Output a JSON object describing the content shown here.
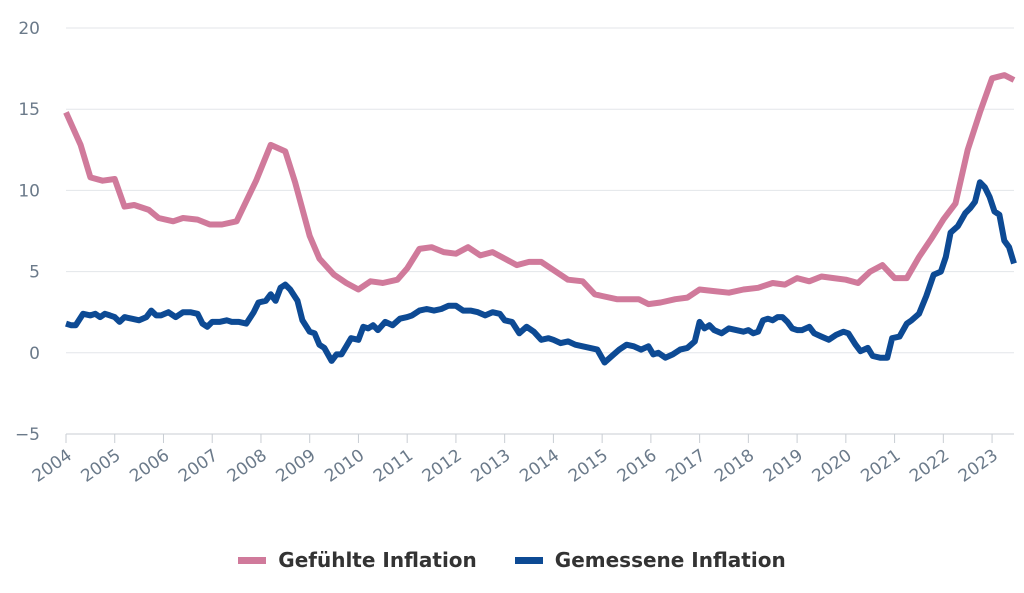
{
  "chart_data": {
    "type": "line",
    "ylim": [
      -5,
      20
    ],
    "xlim": [
      2004.0,
      2023.45
    ],
    "y_ticks": [
      -5,
      0,
      5,
      10,
      15,
      20
    ],
    "y_tick_labels": [
      "−5",
      "0",
      "5",
      "10",
      "15",
      "20"
    ],
    "x_ticks": [
      2004,
      2005,
      2006,
      2007,
      2008,
      2009,
      2010,
      2011,
      2012,
      2013,
      2014,
      2015,
      2016,
      2017,
      2018,
      2019,
      2020,
      2021,
      2022,
      2023
    ],
    "x_tick_labels": [
      "2004",
      "2005",
      "2006",
      "2007",
      "2008",
      "2009",
      "2010",
      "2011",
      "2012",
      "2013",
      "2014",
      "2015",
      "2016",
      "2017",
      "2018",
      "2019",
      "2020",
      "2021",
      "2022",
      "2023"
    ],
    "grid": "horizontal",
    "legend_position": "bottom-center",
    "series": [
      {
        "name": "Gefühlte Inflation",
        "color": "#d07a9b",
        "points": [
          [
            2004.0,
            14.8
          ],
          [
            2004.3,
            12.8
          ],
          [
            2004.5,
            10.8
          ],
          [
            2004.75,
            10.6
          ],
          [
            2005.0,
            10.7
          ],
          [
            2005.2,
            9.0
          ],
          [
            2005.4,
            9.1
          ],
          [
            2005.7,
            8.8
          ],
          [
            2005.9,
            8.3
          ],
          [
            2006.2,
            8.1
          ],
          [
            2006.4,
            8.3
          ],
          [
            2006.7,
            8.2
          ],
          [
            2006.95,
            7.9
          ],
          [
            2007.2,
            7.9
          ],
          [
            2007.5,
            8.1
          ],
          [
            2007.9,
            10.6
          ],
          [
            2008.2,
            12.8
          ],
          [
            2008.5,
            12.4
          ],
          [
            2008.7,
            10.5
          ],
          [
            2009.0,
            7.2
          ],
          [
            2009.2,
            5.8
          ],
          [
            2009.5,
            4.8
          ],
          [
            2009.75,
            4.3
          ],
          [
            2010.0,
            3.9
          ],
          [
            2010.25,
            4.4
          ],
          [
            2010.5,
            4.3
          ],
          [
            2010.8,
            4.5
          ],
          [
            2011.0,
            5.2
          ],
          [
            2011.25,
            6.4
          ],
          [
            2011.5,
            6.5
          ],
          [
            2011.75,
            6.2
          ],
          [
            2012.0,
            6.1
          ],
          [
            2012.25,
            6.5
          ],
          [
            2012.5,
            6.0
          ],
          [
            2012.75,
            6.2
          ],
          [
            2013.0,
            5.8
          ],
          [
            2013.25,
            5.4
          ],
          [
            2013.5,
            5.6
          ],
          [
            2013.75,
            5.6
          ],
          [
            2014.0,
            5.1
          ],
          [
            2014.3,
            4.5
          ],
          [
            2014.6,
            4.4
          ],
          [
            2014.85,
            3.6
          ],
          [
            2015.0,
            3.5
          ],
          [
            2015.3,
            3.3
          ],
          [
            2015.6,
            3.3
          ],
          [
            2015.75,
            3.3
          ],
          [
            2015.95,
            3.0
          ],
          [
            2016.2,
            3.1
          ],
          [
            2016.5,
            3.3
          ],
          [
            2016.75,
            3.4
          ],
          [
            2017.0,
            3.9
          ],
          [
            2017.3,
            3.8
          ],
          [
            2017.6,
            3.7
          ],
          [
            2017.9,
            3.9
          ],
          [
            2018.2,
            4.0
          ],
          [
            2018.5,
            4.3
          ],
          [
            2018.75,
            4.2
          ],
          [
            2019.0,
            4.6
          ],
          [
            2019.25,
            4.4
          ],
          [
            2019.5,
            4.7
          ],
          [
            2019.75,
            4.6
          ],
          [
            2020.0,
            4.5
          ],
          [
            2020.25,
            4.3
          ],
          [
            2020.5,
            5.0
          ],
          [
            2020.75,
            5.4
          ],
          [
            2021.0,
            4.6
          ],
          [
            2021.25,
            4.6
          ],
          [
            2021.5,
            5.9
          ],
          [
            2021.75,
            7.0
          ],
          [
            2022.0,
            8.2
          ],
          [
            2022.25,
            9.2
          ],
          [
            2022.5,
            12.5
          ],
          [
            2022.75,
            14.8
          ],
          [
            2023.0,
            16.9
          ],
          [
            2023.25,
            17.1
          ],
          [
            2023.45,
            16.8
          ]
        ]
      },
      {
        "name": "Gemessene Inflation",
        "color": "#0d4a94",
        "points": [
          [
            2004.0,
            1.8
          ],
          [
            2004.1,
            1.7
          ],
          [
            2004.2,
            1.7
          ],
          [
            2004.35,
            2.4
          ],
          [
            2004.5,
            2.3
          ],
          [
            2004.6,
            2.4
          ],
          [
            2004.7,
            2.2
          ],
          [
            2004.8,
            2.4
          ],
          [
            2004.9,
            2.3
          ],
          [
            2005.0,
            2.2
          ],
          [
            2005.1,
            1.9
          ],
          [
            2005.2,
            2.2
          ],
          [
            2005.35,
            2.1
          ],
          [
            2005.5,
            2.0
          ],
          [
            2005.65,
            2.2
          ],
          [
            2005.75,
            2.6
          ],
          [
            2005.85,
            2.3
          ],
          [
            2005.95,
            2.3
          ],
          [
            2006.1,
            2.5
          ],
          [
            2006.25,
            2.2
          ],
          [
            2006.4,
            2.5
          ],
          [
            2006.55,
            2.5
          ],
          [
            2006.7,
            2.4
          ],
          [
            2006.8,
            1.8
          ],
          [
            2006.9,
            1.6
          ],
          [
            2007.0,
            1.9
          ],
          [
            2007.15,
            1.9
          ],
          [
            2007.3,
            2.0
          ],
          [
            2007.4,
            1.9
          ],
          [
            2007.55,
            1.9
          ],
          [
            2007.7,
            1.8
          ],
          [
            2007.85,
            2.5
          ],
          [
            2007.95,
            3.1
          ],
          [
            2008.1,
            3.2
          ],
          [
            2008.2,
            3.6
          ],
          [
            2008.3,
            3.2
          ],
          [
            2008.4,
            4.0
          ],
          [
            2008.5,
            4.2
          ],
          [
            2008.6,
            3.9
          ],
          [
            2008.75,
            3.2
          ],
          [
            2008.85,
            2.0
          ],
          [
            2009.0,
            1.3
          ],
          [
            2009.1,
            1.2
          ],
          [
            2009.2,
            0.5
          ],
          [
            2009.3,
            0.3
          ],
          [
            2009.45,
            -0.5
          ],
          [
            2009.55,
            -0.1
          ],
          [
            2009.65,
            -0.1
          ],
          [
            2009.75,
            0.4
          ],
          [
            2009.85,
            0.9
          ],
          [
            2010.0,
            0.8
          ],
          [
            2010.1,
            1.6
          ],
          [
            2010.2,
            1.5
          ],
          [
            2010.3,
            1.7
          ],
          [
            2010.4,
            1.4
          ],
          [
            2010.55,
            1.9
          ],
          [
            2010.7,
            1.7
          ],
          [
            2010.85,
            2.1
          ],
          [
            2011.0,
            2.2
          ],
          [
            2011.1,
            2.3
          ],
          [
            2011.25,
            2.6
          ],
          [
            2011.4,
            2.7
          ],
          [
            2011.55,
            2.6
          ],
          [
            2011.7,
            2.7
          ],
          [
            2011.85,
            2.9
          ],
          [
            2012.0,
            2.9
          ],
          [
            2012.15,
            2.6
          ],
          [
            2012.3,
            2.6
          ],
          [
            2012.45,
            2.5
          ],
          [
            2012.6,
            2.3
          ],
          [
            2012.75,
            2.5
          ],
          [
            2012.9,
            2.4
          ],
          [
            2013.0,
            2.0
          ],
          [
            2013.15,
            1.9
          ],
          [
            2013.3,
            1.2
          ],
          [
            2013.45,
            1.6
          ],
          [
            2013.6,
            1.3
          ],
          [
            2013.75,
            0.8
          ],
          [
            2013.9,
            0.9
          ],
          [
            2014.0,
            0.8
          ],
          [
            2014.15,
            0.6
          ],
          [
            2014.3,
            0.7
          ],
          [
            2014.45,
            0.5
          ],
          [
            2014.6,
            0.4
          ],
          [
            2014.75,
            0.3
          ],
          [
            2014.9,
            0.2
          ],
          [
            2015.05,
            -0.6
          ],
          [
            2015.2,
            -0.2
          ],
          [
            2015.35,
            0.2
          ],
          [
            2015.5,
            0.5
          ],
          [
            2015.65,
            0.4
          ],
          [
            2015.8,
            0.2
          ],
          [
            2015.95,
            0.4
          ],
          [
            2016.05,
            -0.1
          ],
          [
            2016.15,
            0.0
          ],
          [
            2016.3,
            -0.3
          ],
          [
            2016.45,
            -0.1
          ],
          [
            2016.6,
            0.2
          ],
          [
            2016.75,
            0.3
          ],
          [
            2016.9,
            0.7
          ],
          [
            2017.0,
            1.9
          ],
          [
            2017.1,
            1.5
          ],
          [
            2017.2,
            1.7
          ],
          [
            2017.3,
            1.4
          ],
          [
            2017.45,
            1.2
          ],
          [
            2017.6,
            1.5
          ],
          [
            2017.75,
            1.4
          ],
          [
            2017.9,
            1.3
          ],
          [
            2018.0,
            1.4
          ],
          [
            2018.1,
            1.2
          ],
          [
            2018.2,
            1.3
          ],
          [
            2018.3,
            2.0
          ],
          [
            2018.4,
            2.1
          ],
          [
            2018.5,
            2.0
          ],
          [
            2018.6,
            2.2
          ],
          [
            2018.7,
            2.2
          ],
          [
            2018.8,
            1.9
          ],
          [
            2018.9,
            1.5
          ],
          [
            2019.0,
            1.4
          ],
          [
            2019.1,
            1.4
          ],
          [
            2019.25,
            1.6
          ],
          [
            2019.35,
            1.2
          ],
          [
            2019.5,
            1.0
          ],
          [
            2019.65,
            0.8
          ],
          [
            2019.8,
            1.1
          ],
          [
            2019.95,
            1.3
          ],
          [
            2020.05,
            1.2
          ],
          [
            2020.2,
            0.5
          ],
          [
            2020.3,
            0.1
          ],
          [
            2020.45,
            0.3
          ],
          [
            2020.55,
            -0.2
          ],
          [
            2020.7,
            -0.3
          ],
          [
            2020.85,
            -0.3
          ],
          [
            2020.95,
            0.9
          ],
          [
            2021.1,
            1.0
          ],
          [
            2021.25,
            1.8
          ],
          [
            2021.35,
            2.0
          ],
          [
            2021.5,
            2.4
          ],
          [
            2021.65,
            3.5
          ],
          [
            2021.8,
            4.8
          ],
          [
            2021.95,
            5.0
          ],
          [
            2022.05,
            5.9
          ],
          [
            2022.15,
            7.4
          ],
          [
            2022.3,
            7.8
          ],
          [
            2022.45,
            8.6
          ],
          [
            2022.55,
            8.9
          ],
          [
            2022.65,
            9.3
          ],
          [
            2022.75,
            10.5
          ],
          [
            2022.85,
            10.2
          ],
          [
            2022.95,
            9.6
          ],
          [
            2023.05,
            8.7
          ],
          [
            2023.15,
            8.5
          ],
          [
            2023.25,
            6.9
          ],
          [
            2023.35,
            6.5
          ],
          [
            2023.45,
            5.5
          ]
        ]
      }
    ]
  }
}
